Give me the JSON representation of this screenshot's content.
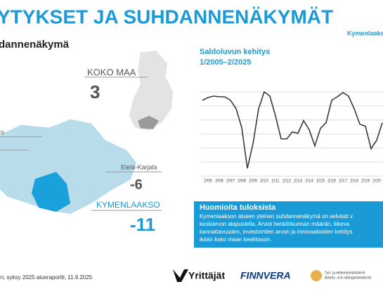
{
  "header": {
    "title": "YTYKSET JA SUHDANNENÄKYMÄT",
    "region": "Kymenlaakso",
    "section": "dannenäkymä"
  },
  "map": {
    "whole_country": {
      "label": "KOKO MAA",
      "value": 3
    },
    "cut_label": "ro",
    "neighbour": {
      "label": "Etelä-Karjala",
      "value": -6
    },
    "region": {
      "label": "KYMENLAAKSO",
      "value": -11
    }
  },
  "chart_data": {
    "type": "line",
    "title": "Saldoluvun kehitys",
    "subtitle": "1/2005–2/2025",
    "categories": [
      null,
      "2/05",
      null,
      "2/06",
      null,
      "2/07",
      null,
      "2/08",
      null,
      "2/09",
      null,
      "2/10",
      null,
      "2/11",
      null,
      "2/12",
      null,
      "2/13",
      null,
      "2/14",
      null,
      "2/15",
      null,
      "2/16",
      null,
      "2/17",
      null,
      "2/18",
      null,
      "2/19",
      null,
      "2/20",
      null,
      "2/2"
    ],
    "values": [
      24,
      26,
      27,
      26.5,
      26.5,
      24,
      18,
      4.5,
      -24.5,
      -7,
      18,
      30,
      27,
      13,
      -3.5,
      -3.5,
      1.5,
      0.5,
      9.5,
      3,
      -8.5,
      4,
      8,
      24,
      26.5,
      29.5,
      27,
      18,
      7,
      5.5,
      -10.5,
      -4.5,
      8,
      null
    ],
    "color": "#3a3a3a",
    "ylim": [
      -30,
      30
    ],
    "grid": true
  },
  "notes": {
    "title": "Huomioita tuloksista",
    "lines": [
      "Kymenlaakson alueen yleinen suhdannenäkymä on selvästi v",
      "keskiarvon alapuolella. Arviot henkilökunnan määrän, liikeva",
      "kannattavuuden, investointien arvon ja innovaatioiden kehitys",
      "ikään koko maan keskitason."
    ]
  },
  "footer": {
    "source": "rri, syksy 2025 alueraportti, 11.9.2025",
    "logos": [
      "Yrittäjät",
      "FINNVERA",
      "Työ- ja elinkeinoministeriö",
      "Arbets- och näringsministeriet"
    ]
  }
}
